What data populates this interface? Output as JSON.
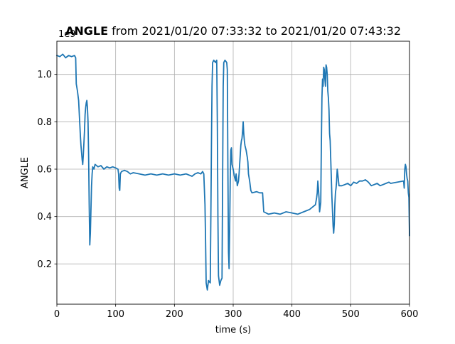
{
  "chart_data": {
    "type": "line",
    "title_bold": "ANGLE",
    "title_rest": " from 2021/01/20 07:33:32 to 2021/01/20 07:43:32",
    "xlabel": "time (s)",
    "ylabel": "ANGLE",
    "offset_label": "1e9",
    "xlim": [
      0,
      600
    ],
    "ylim": [
      0.03,
      1.14
    ],
    "x_ticks": [
      0,
      100,
      200,
      300,
      400,
      500,
      600
    ],
    "y_ticks": [
      0.2,
      0.4,
      0.6,
      0.8,
      1.0
    ],
    "x_tick_labels": [
      "0",
      "100",
      "200",
      "300",
      "400",
      "500",
      "600"
    ],
    "y_tick_labels": [
      "0.2",
      "0.4",
      "0.6",
      "0.8",
      "1.0"
    ],
    "grid": true,
    "series": [
      {
        "color": "#1f77b4",
        "points": [
          [
            0,
            1.08
          ],
          [
            5,
            1.075
          ],
          [
            10,
            1.085
          ],
          [
            15,
            1.07
          ],
          [
            20,
            1.08
          ],
          [
            25,
            1.075
          ],
          [
            30,
            1.08
          ],
          [
            32,
            1.07
          ],
          [
            33,
            0.96
          ],
          [
            35,
            0.93
          ],
          [
            37,
            0.89
          ],
          [
            38,
            0.84
          ],
          [
            39,
            0.79
          ],
          [
            40,
            0.74
          ],
          [
            41,
            0.7
          ],
          [
            42,
            0.67
          ],
          [
            43,
            0.64
          ],
          [
            44,
            0.62
          ],
          [
            45,
            0.66
          ],
          [
            47,
            0.76
          ],
          [
            48,
            0.83
          ],
          [
            49,
            0.86
          ],
          [
            50,
            0.88
          ],
          [
            51,
            0.89
          ],
          [
            52,
            0.86
          ],
          [
            53,
            0.8
          ],
          [
            54,
            0.66
          ],
          [
            55,
            0.45
          ],
          [
            56,
            0.28
          ],
          [
            57,
            0.33
          ],
          [
            58,
            0.43
          ],
          [
            59,
            0.53
          ],
          [
            60,
            0.58
          ],
          [
            61,
            0.61
          ],
          [
            63,
            0.6
          ],
          [
            65,
            0.62
          ],
          [
            70,
            0.61
          ],
          [
            75,
            0.615
          ],
          [
            80,
            0.6
          ],
          [
            85,
            0.61
          ],
          [
            90,
            0.605
          ],
          [
            95,
            0.61
          ],
          [
            100,
            0.605
          ],
          [
            104,
            0.6
          ],
          [
            105,
            0.58
          ],
          [
            106,
            0.52
          ],
          [
            107,
            0.51
          ],
          [
            108,
            0.58
          ],
          [
            110,
            0.59
          ],
          [
            115,
            0.595
          ],
          [
            120,
            0.59
          ],
          [
            125,
            0.58
          ],
          [
            130,
            0.585
          ],
          [
            140,
            0.58
          ],
          [
            150,
            0.575
          ],
          [
            160,
            0.58
          ],
          [
            170,
            0.575
          ],
          [
            180,
            0.58
          ],
          [
            190,
            0.575
          ],
          [
            200,
            0.58
          ],
          [
            210,
            0.575
          ],
          [
            220,
            0.58
          ],
          [
            230,
            0.57
          ],
          [
            235,
            0.58
          ],
          [
            240,
            0.585
          ],
          [
            245,
            0.58
          ],
          [
            248,
            0.59
          ],
          [
            250,
            0.58
          ],
          [
            252,
            0.45
          ],
          [
            253,
            0.3
          ],
          [
            254,
            0.12
          ],
          [
            256,
            0.09
          ],
          [
            258,
            0.13
          ],
          [
            261,
            0.12
          ],
          [
            262,
            0.4
          ],
          [
            263,
            0.7
          ],
          [
            264,
            0.95
          ],
          [
            265,
            1.05
          ],
          [
            267,
            1.06
          ],
          [
            270,
            1.05
          ],
          [
            272,
            1.06
          ],
          [
            273,
            0.8
          ],
          [
            274,
            0.4
          ],
          [
            275,
            0.15
          ],
          [
            277,
            0.11
          ],
          [
            279,
            0.13
          ],
          [
            281,
            0.14
          ],
          [
            282,
            0.55
          ],
          [
            283,
            0.95
          ],
          [
            284,
            1.05
          ],
          [
            286,
            1.06
          ],
          [
            289,
            1.05
          ],
          [
            290,
            1.02
          ],
          [
            291,
            0.6
          ],
          [
            292,
            0.25
          ],
          [
            293,
            0.18
          ],
          [
            294,
            0.35
          ],
          [
            295,
            0.56
          ],
          [
            296,
            0.68
          ],
          [
            297,
            0.69
          ],
          [
            298,
            0.62
          ],
          [
            300,
            0.6
          ],
          [
            302,
            0.57
          ],
          [
            304,
            0.55
          ],
          [
            305,
            0.58
          ],
          [
            307,
            0.53
          ],
          [
            309,
            0.55
          ],
          [
            310,
            0.58
          ],
          [
            311,
            0.62
          ],
          [
            313,
            0.7
          ],
          [
            314,
            0.72
          ],
          [
            315,
            0.73
          ],
          [
            316,
            0.76
          ],
          [
            317,
            0.8
          ],
          [
            318,
            0.75
          ],
          [
            319,
            0.72
          ],
          [
            320,
            0.7
          ],
          [
            322,
            0.68
          ],
          [
            324,
            0.65
          ],
          [
            325,
            0.63
          ],
          [
            326,
            0.58
          ],
          [
            328,
            0.55
          ],
          [
            330,
            0.51
          ],
          [
            332,
            0.5
          ],
          [
            340,
            0.505
          ],
          [
            345,
            0.5
          ],
          [
            350,
            0.5
          ],
          [
            351,
            0.46
          ],
          [
            352,
            0.42
          ],
          [
            360,
            0.41
          ],
          [
            370,
            0.415
          ],
          [
            380,
            0.41
          ],
          [
            390,
            0.42
          ],
          [
            400,
            0.415
          ],
          [
            410,
            0.41
          ],
          [
            420,
            0.42
          ],
          [
            430,
            0.43
          ],
          [
            435,
            0.44
          ],
          [
            440,
            0.45
          ],
          [
            442,
            0.48
          ],
          [
            443,
            0.5
          ],
          [
            444,
            0.55
          ],
          [
            445,
            0.52
          ],
          [
            446,
            0.48
          ],
          [
            447,
            0.42
          ],
          [
            449,
            0.46
          ],
          [
            450,
            0.7
          ],
          [
            451,
            0.9
          ],
          [
            452,
            0.98
          ],
          [
            453,
            0.95
          ],
          [
            454,
            1.03
          ],
          [
            455,
            1.02
          ],
          [
            456,
            0.98
          ],
          [
            457,
            0.95
          ],
          [
            458,
            1.04
          ],
          [
            459,
            1.03
          ],
          [
            460,
            1.0
          ],
          [
            461,
            0.93
          ],
          [
            462,
            0.9
          ],
          [
            463,
            0.85
          ],
          [
            464,
            0.75
          ],
          [
            465,
            0.72
          ],
          [
            466,
            0.64
          ],
          [
            467,
            0.56
          ],
          [
            468,
            0.48
          ],
          [
            469,
            0.42
          ],
          [
            470,
            0.36
          ],
          [
            471,
            0.33
          ],
          [
            472,
            0.37
          ],
          [
            473,
            0.45
          ],
          [
            474,
            0.5
          ],
          [
            475,
            0.52
          ],
          [
            476,
            0.55
          ],
          [
            477,
            0.6
          ],
          [
            478,
            0.58
          ],
          [
            480,
            0.53
          ],
          [
            485,
            0.53
          ],
          [
            490,
            0.535
          ],
          [
            495,
            0.54
          ],
          [
            500,
            0.53
          ],
          [
            505,
            0.545
          ],
          [
            510,
            0.54
          ],
          [
            515,
            0.55
          ],
          [
            520,
            0.55
          ],
          [
            525,
            0.555
          ],
          [
            530,
            0.545
          ],
          [
            535,
            0.53
          ],
          [
            540,
            0.535
          ],
          [
            545,
            0.54
          ],
          [
            550,
            0.53
          ],
          [
            555,
            0.535
          ],
          [
            560,
            0.54
          ],
          [
            565,
            0.545
          ],
          [
            568,
            0.54
          ],
          [
            590,
            0.55
          ],
          [
            591,
            0.52
          ],
          [
            592,
            0.6
          ],
          [
            593,
            0.62
          ],
          [
            594,
            0.61
          ],
          [
            595,
            0.58
          ],
          [
            596,
            0.56
          ],
          [
            597,
            0.55
          ],
          [
            598,
            0.5
          ],
          [
            599,
            0.48
          ],
          [
            600,
            0.32
          ]
        ]
      }
    ]
  }
}
